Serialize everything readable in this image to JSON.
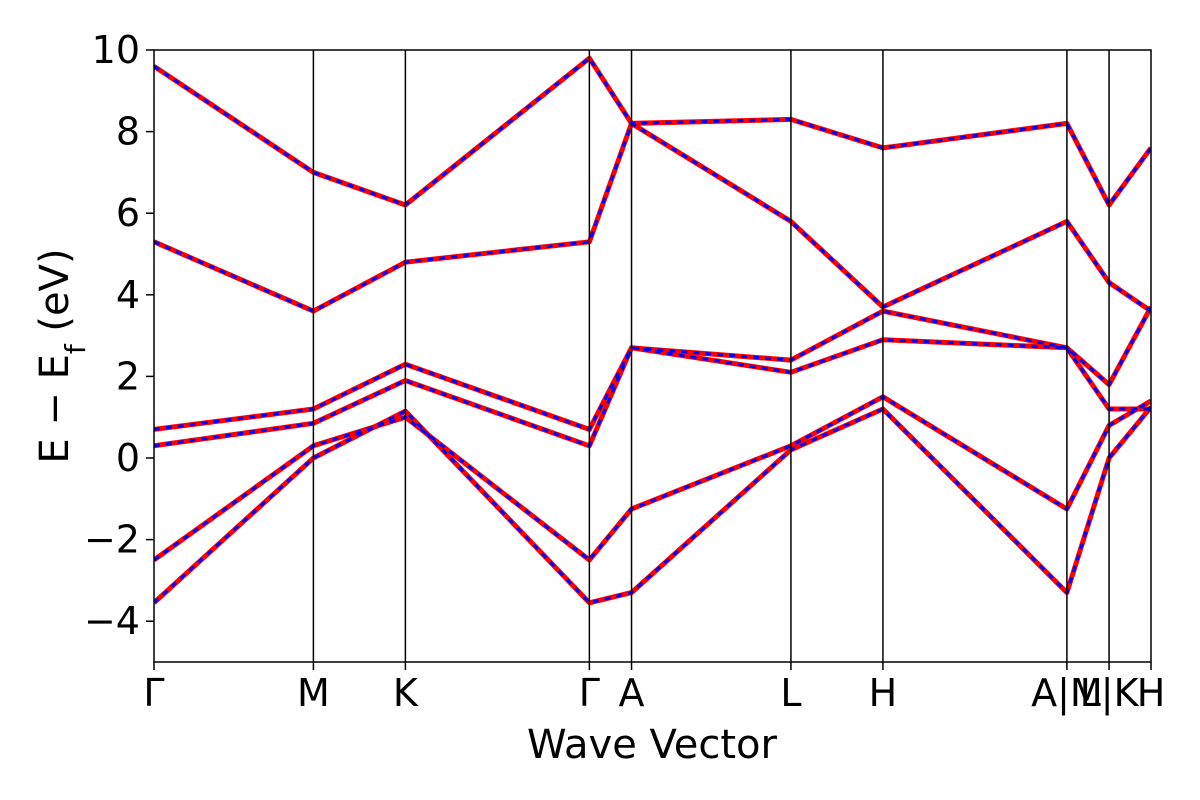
{
  "chart_data": {
    "type": "line",
    "title": "",
    "xlabel": "Wave Vector",
    "ylabel": "E − E_f (eV)",
    "ylim": [
      -5,
      10
    ],
    "yticks": [
      -4,
      -2,
      0,
      2,
      4,
      6,
      8,
      10
    ],
    "grid": false,
    "high_symmetry_points": [
      {
        "label": "Γ",
        "x": 0.0
      },
      {
        "label": "M",
        "x": 0.726
      },
      {
        "label": "K",
        "x": 1.145
      },
      {
        "label": "Γ",
        "x": 1.983
      },
      {
        "label": "A",
        "x": 2.175
      },
      {
        "label": "L",
        "x": 2.901
      },
      {
        "label": "H",
        "x": 3.32
      },
      {
        "label": "A|M",
        "x": 4.158
      },
      {
        "label": "L|K",
        "x": 4.35
      },
      {
        "label": "H",
        "x": 4.541
      }
    ],
    "series": [
      {
        "kind": "band-a",
        "color": "#ff0000",
        "style": "solid",
        "x": [
          0,
          0.726,
          1.145,
          1.983,
          2.175,
          2.901,
          3.32,
          4.158,
          4.35,
          4.541
        ],
        "y": [
          -3.55,
          0.0,
          1.15,
          -3.55,
          -3.3,
          0.2,
          1.2,
          -3.3,
          0.0,
          1.25
        ]
      },
      {
        "kind": "band-b",
        "color": "#ff0000",
        "style": "solid",
        "x": [
          0,
          0.726,
          1.145,
          1.983,
          2.175,
          2.901,
          3.32,
          4.158,
          4.35,
          4.541
        ],
        "y": [
          -2.5,
          0.3,
          1.0,
          -2.5,
          -1.25,
          0.3,
          1.5,
          -1.25,
          0.8,
          1.4
        ]
      },
      {
        "kind": "band-c",
        "color": "#ff0000",
        "style": "solid",
        "x": [
          0,
          0.726,
          1.145,
          1.983,
          2.175,
          2.901,
          3.32,
          4.158,
          4.35,
          4.541
        ],
        "y": [
          0.3,
          0.85,
          1.9,
          0.3,
          2.7,
          2.1,
          2.9,
          2.7,
          1.2,
          1.2
        ]
      },
      {
        "kind": "band-d",
        "color": "#ff0000",
        "style": "solid",
        "x": [
          0,
          0.726,
          1.145,
          1.983,
          2.175,
          2.901,
          3.32,
          4.158,
          4.35,
          4.541
        ],
        "y": [
          0.7,
          1.2,
          2.3,
          0.7,
          2.7,
          2.4,
          3.6,
          2.7,
          1.8,
          3.7
        ]
      },
      {
        "kind": "band-e",
        "color": "#ff0000",
        "style": "solid",
        "x": [
          0,
          0.726,
          1.145,
          1.983,
          2.175,
          2.901,
          3.32,
          4.158,
          4.35,
          4.541
        ],
        "y": [
          5.3,
          3.6,
          4.8,
          5.3,
          8.2,
          5.8,
          3.7,
          5.8,
          4.3,
          3.6
        ]
      },
      {
        "kind": "band-f",
        "color": "#ff0000",
        "style": "solid",
        "x": [
          0,
          0.726,
          1.145,
          1.983,
          2.175,
          2.901,
          3.32,
          4.158,
          4.35,
          4.541
        ],
        "y": [
          9.6,
          7.0,
          6.2,
          9.8,
          8.2,
          8.3,
          7.6,
          8.2,
          6.2,
          7.6
        ]
      },
      {
        "kind": "band-a-overlay",
        "color": "#0000ff",
        "style": "dashed",
        "x": [
          0,
          0.726,
          1.145,
          1.983,
          2.175,
          2.901,
          3.32,
          4.158,
          4.35,
          4.541
        ],
        "y": [
          -3.55,
          0.0,
          1.15,
          -3.55,
          -3.3,
          0.2,
          1.2,
          -3.3,
          0.0,
          1.25
        ]
      },
      {
        "kind": "band-b-overlay",
        "color": "#0000ff",
        "style": "dashed",
        "x": [
          0,
          0.726,
          1.145,
          1.983,
          2.175,
          2.901,
          3.32,
          4.158,
          4.35,
          4.541
        ],
        "y": [
          -2.5,
          0.3,
          1.0,
          -2.5,
          -1.25,
          0.3,
          1.5,
          -1.25,
          0.8,
          1.4
        ]
      },
      {
        "kind": "band-c-overlay",
        "color": "#0000ff",
        "style": "dashed",
        "x": [
          0,
          0.726,
          1.145,
          1.983,
          2.175,
          2.901,
          3.32,
          4.158,
          4.35,
          4.541
        ],
        "y": [
          0.3,
          0.85,
          1.9,
          0.3,
          2.7,
          2.1,
          2.9,
          2.7,
          1.2,
          1.2
        ]
      },
      {
        "kind": "band-d-overlay",
        "color": "#0000ff",
        "style": "dashed",
        "x": [
          0,
          0.726,
          1.145,
          1.983,
          2.175,
          2.901,
          3.32,
          4.158,
          4.35,
          4.541
        ],
        "y": [
          0.7,
          1.2,
          2.3,
          0.7,
          2.7,
          2.4,
          3.6,
          2.7,
          1.8,
          3.7
        ]
      },
      {
        "kind": "band-e-overlay",
        "color": "#0000ff",
        "style": "dashed",
        "x": [
          0,
          0.726,
          1.145,
          1.983,
          2.175,
          2.901,
          3.32,
          4.158,
          4.35,
          4.541
        ],
        "y": [
          5.3,
          3.6,
          4.8,
          5.3,
          8.2,
          5.8,
          3.7,
          5.8,
          4.3,
          3.6
        ]
      },
      {
        "kind": "band-f-overlay",
        "color": "#0000ff",
        "style": "dashed",
        "x": [
          0,
          0.726,
          1.145,
          1.983,
          2.175,
          2.901,
          3.32,
          4.158,
          4.35,
          4.541
        ],
        "y": [
          9.6,
          7.0,
          6.2,
          9.8,
          8.2,
          8.3,
          7.6,
          8.2,
          6.2,
          7.6
        ]
      }
    ]
  }
}
